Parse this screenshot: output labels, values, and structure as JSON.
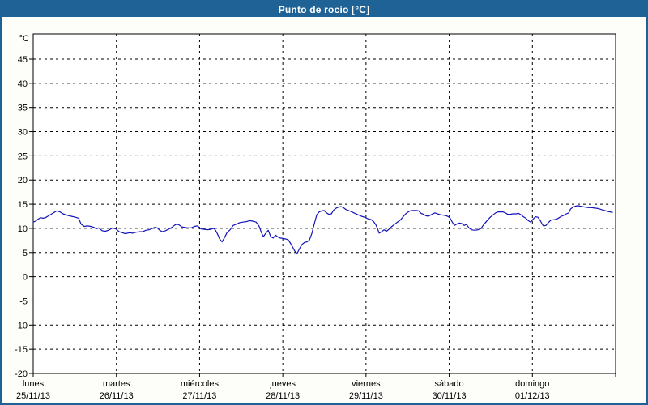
{
  "window": {
    "title": "Punto de rocío [°C]"
  },
  "colors": {
    "titlebar_bg": "#1f6396",
    "titlebar_text": "#ffffff",
    "outer_border": "#1f6396",
    "page_bg": "#fdfefa",
    "plot_bg": "#ffffff",
    "grid": "#000000",
    "axis": "#000000",
    "line": "#1414b8",
    "label_text": "#000000"
  },
  "chart_data": {
    "type": "line",
    "title": "Punto de rocío [°C]",
    "ylabel": "°C",
    "ylim": [
      -20,
      50
    ],
    "yticks": [
      45,
      40,
      35,
      30,
      25,
      20,
      15,
      10,
      5,
      0,
      -5,
      -10,
      -15,
      -20
    ],
    "grid": "dashed",
    "legend_position": "none",
    "x_axis": {
      "unit": "hours",
      "range_hours": [
        0,
        168
      ],
      "days": [
        {
          "name": "lunes",
          "date": "25/11/13"
        },
        {
          "name": "martes",
          "date": "26/11/13"
        },
        {
          "name": "miércoles",
          "date": "27/11/13"
        },
        {
          "name": "jueves",
          "date": "28/11/13"
        },
        {
          "name": "viernes",
          "date": "29/11/13"
        },
        {
          "name": "sábado",
          "date": "30/11/13"
        },
        {
          "name": "domingo",
          "date": "01/12/13"
        }
      ]
    },
    "series": [
      {
        "name": "Punto de rocío",
        "units": "°C",
        "color": "#1414b8",
        "points": [
          [
            0,
            11.3
          ],
          [
            0.7,
            11.5
          ],
          [
            1.4,
            11.9
          ],
          [
            2.1,
            12.2
          ],
          [
            2.8,
            12.1
          ],
          [
            3.5,
            12.2
          ],
          [
            4.2,
            12.5
          ],
          [
            4.9,
            12.8
          ],
          [
            5.8,
            13.2
          ],
          [
            6.8,
            13.6
          ],
          [
            7.7,
            13.4
          ],
          [
            8.6,
            13.0
          ],
          [
            9.8,
            12.7
          ],
          [
            11.0,
            12.5
          ],
          [
            12.2,
            12.3
          ],
          [
            13.1,
            12.1
          ],
          [
            13.8,
            10.9
          ],
          [
            14.7,
            10.4
          ],
          [
            15.7,
            10.5
          ],
          [
            16.6,
            10.4
          ],
          [
            17.5,
            10.2
          ],
          [
            18.2,
            9.9
          ],
          [
            18.9,
            10.1
          ],
          [
            19.9,
            9.5
          ],
          [
            20.8,
            9.4
          ],
          [
            21.7,
            9.6
          ],
          [
            22.9,
            10.1
          ],
          [
            23.8,
            9.9
          ],
          [
            24.8,
            9.3
          ],
          [
            25.7,
            9.1
          ],
          [
            26.6,
            8.9
          ],
          [
            27.8,
            9.1
          ],
          [
            28.7,
            9.0
          ],
          [
            29.7,
            9.2
          ],
          [
            30.6,
            9.3
          ],
          [
            31.6,
            9.3
          ],
          [
            32.5,
            9.6
          ],
          [
            33.4,
            9.7
          ],
          [
            34.4,
            10.0
          ],
          [
            35.1,
            10.2
          ],
          [
            35.8,
            10.1
          ],
          [
            36.5,
            9.6
          ],
          [
            37.2,
            9.3
          ],
          [
            38.1,
            9.5
          ],
          [
            39.0,
            9.8
          ],
          [
            40.0,
            10.2
          ],
          [
            40.7,
            10.6
          ],
          [
            41.4,
            10.9
          ],
          [
            42.1,
            10.7
          ],
          [
            42.8,
            10.3
          ],
          [
            43.7,
            10.2
          ],
          [
            44.6,
            10.1
          ],
          [
            45.6,
            10.1
          ],
          [
            46.5,
            10.4
          ],
          [
            47.4,
            10.5
          ],
          [
            48.4,
            9.9
          ],
          [
            49.3,
            9.8
          ],
          [
            50.2,
            9.7
          ],
          [
            51.2,
            9.8
          ],
          [
            52.1,
            10.0
          ],
          [
            52.6,
            9.6
          ],
          [
            53.1,
            8.9
          ],
          [
            53.8,
            7.8
          ],
          [
            54.5,
            7.2
          ],
          [
            55.2,
            8.1
          ],
          [
            55.9,
            9.1
          ],
          [
            56.8,
            9.7
          ],
          [
            57.7,
            10.6
          ],
          [
            58.7,
            10.9
          ],
          [
            59.6,
            11.2
          ],
          [
            60.5,
            11.3
          ],
          [
            61.5,
            11.4
          ],
          [
            62.4,
            11.6
          ],
          [
            63.3,
            11.5
          ],
          [
            64.3,
            11.3
          ],
          [
            65.2,
            10.4
          ],
          [
            65.9,
            9.0
          ],
          [
            66.4,
            8.3
          ],
          [
            67.1,
            9.0
          ],
          [
            67.8,
            9.6
          ],
          [
            68.5,
            8.3
          ],
          [
            69.2,
            8.0
          ],
          [
            69.9,
            8.6
          ],
          [
            70.6,
            8.2
          ],
          [
            71.3,
            8.0
          ],
          [
            72.2,
            7.9
          ],
          [
            72.9,
            7.8
          ],
          [
            73.6,
            7.6
          ],
          [
            74.3,
            6.8
          ],
          [
            75.0,
            5.9
          ],
          [
            75.7,
            5.0
          ],
          [
            76.2,
            4.9
          ],
          [
            76.9,
            5.9
          ],
          [
            77.6,
            6.7
          ],
          [
            78.3,
            7.1
          ],
          [
            79.0,
            7.2
          ],
          [
            79.7,
            7.6
          ],
          [
            80.4,
            9.0
          ],
          [
            81.1,
            11.0
          ],
          [
            81.8,
            12.8
          ],
          [
            82.5,
            13.4
          ],
          [
            83.2,
            13.6
          ],
          [
            83.9,
            13.7
          ],
          [
            84.6,
            13.2
          ],
          [
            85.3,
            12.9
          ],
          [
            86.0,
            13.0
          ],
          [
            86.7,
            13.8
          ],
          [
            87.4,
            14.2
          ],
          [
            88.1,
            14.4
          ],
          [
            88.8,
            14.5
          ],
          [
            89.5,
            14.3
          ],
          [
            90.2,
            13.9
          ],
          [
            90.9,
            13.7
          ],
          [
            91.9,
            13.4
          ],
          [
            92.8,
            13.1
          ],
          [
            93.7,
            12.8
          ],
          [
            94.7,
            12.5
          ],
          [
            95.6,
            12.3
          ],
          [
            96.5,
            12.0
          ],
          [
            97.5,
            11.8
          ],
          [
            98.2,
            11.4
          ],
          [
            98.8,
            10.8
          ],
          [
            99.3,
            10.0
          ],
          [
            99.8,
            9.0
          ],
          [
            100.5,
            9.3
          ],
          [
            101.2,
            9.7
          ],
          [
            101.9,
            9.4
          ],
          [
            102.6,
            9.8
          ],
          [
            103.3,
            10.3
          ],
          [
            104.0,
            10.7
          ],
          [
            104.9,
            11.2
          ],
          [
            105.9,
            11.7
          ],
          [
            106.6,
            12.3
          ],
          [
            107.3,
            12.9
          ],
          [
            108.0,
            13.3
          ],
          [
            108.7,
            13.6
          ],
          [
            109.6,
            13.7
          ],
          [
            110.5,
            13.7
          ],
          [
            111.2,
            13.6
          ],
          [
            111.9,
            13.1
          ],
          [
            112.6,
            12.9
          ],
          [
            113.3,
            12.6
          ],
          [
            114.0,
            12.5
          ],
          [
            115.0,
            12.9
          ],
          [
            115.9,
            13.2
          ],
          [
            116.6,
            13.0
          ],
          [
            117.5,
            12.8
          ],
          [
            118.5,
            12.7
          ],
          [
            119.2,
            12.6
          ],
          [
            120.1,
            12.3
          ],
          [
            120.8,
            11.4
          ],
          [
            121.5,
            10.6
          ],
          [
            122.2,
            10.9
          ],
          [
            122.9,
            11.1
          ],
          [
            123.6,
            11.0
          ],
          [
            124.3,
            10.6
          ],
          [
            125.0,
            10.8
          ],
          [
            125.7,
            10.1
          ],
          [
            126.4,
            9.7
          ],
          [
            127.4,
            9.6
          ],
          [
            128.3,
            9.7
          ],
          [
            129.2,
            10.0
          ],
          [
            129.9,
            10.7
          ],
          [
            130.6,
            11.3
          ],
          [
            131.3,
            11.9
          ],
          [
            132.0,
            12.4
          ],
          [
            132.7,
            12.8
          ],
          [
            133.4,
            13.2
          ],
          [
            134.1,
            13.4
          ],
          [
            134.8,
            13.4
          ],
          [
            135.5,
            13.4
          ],
          [
            136.2,
            13.2
          ],
          [
            136.9,
            12.9
          ],
          [
            137.6,
            12.9
          ],
          [
            138.3,
            13.0
          ],
          [
            139.3,
            13.0
          ],
          [
            140.0,
            13.1
          ],
          [
            140.7,
            12.8
          ],
          [
            141.4,
            12.4
          ],
          [
            142.1,
            12.1
          ],
          [
            142.8,
            11.6
          ],
          [
            143.5,
            11.3
          ],
          [
            144.2,
            11.9
          ],
          [
            144.9,
            12.4
          ],
          [
            145.6,
            12.3
          ],
          [
            146.3,
            11.6
          ],
          [
            146.8,
            10.9
          ],
          [
            147.2,
            10.5
          ],
          [
            147.9,
            10.6
          ],
          [
            148.6,
            11.2
          ],
          [
            149.3,
            11.7
          ],
          [
            150.3,
            11.8
          ],
          [
            151.0,
            11.9
          ],
          [
            151.7,
            12.2
          ],
          [
            152.4,
            12.5
          ],
          [
            153.1,
            12.7
          ],
          [
            153.8,
            13.0
          ],
          [
            154.5,
            13.2
          ],
          [
            155.0,
            14.0
          ],
          [
            155.7,
            14.4
          ],
          [
            156.4,
            14.6
          ],
          [
            157.1,
            14.7
          ],
          [
            157.8,
            14.6
          ],
          [
            158.5,
            14.5
          ],
          [
            159.2,
            14.4
          ],
          [
            160.1,
            14.3
          ],
          [
            161.0,
            14.3
          ],
          [
            162.0,
            14.2
          ],
          [
            162.9,
            14.1
          ],
          [
            163.8,
            13.9
          ],
          [
            164.8,
            13.7
          ],
          [
            165.7,
            13.5
          ],
          [
            166.4,
            13.4
          ],
          [
            167.1,
            13.3
          ]
        ]
      }
    ]
  }
}
